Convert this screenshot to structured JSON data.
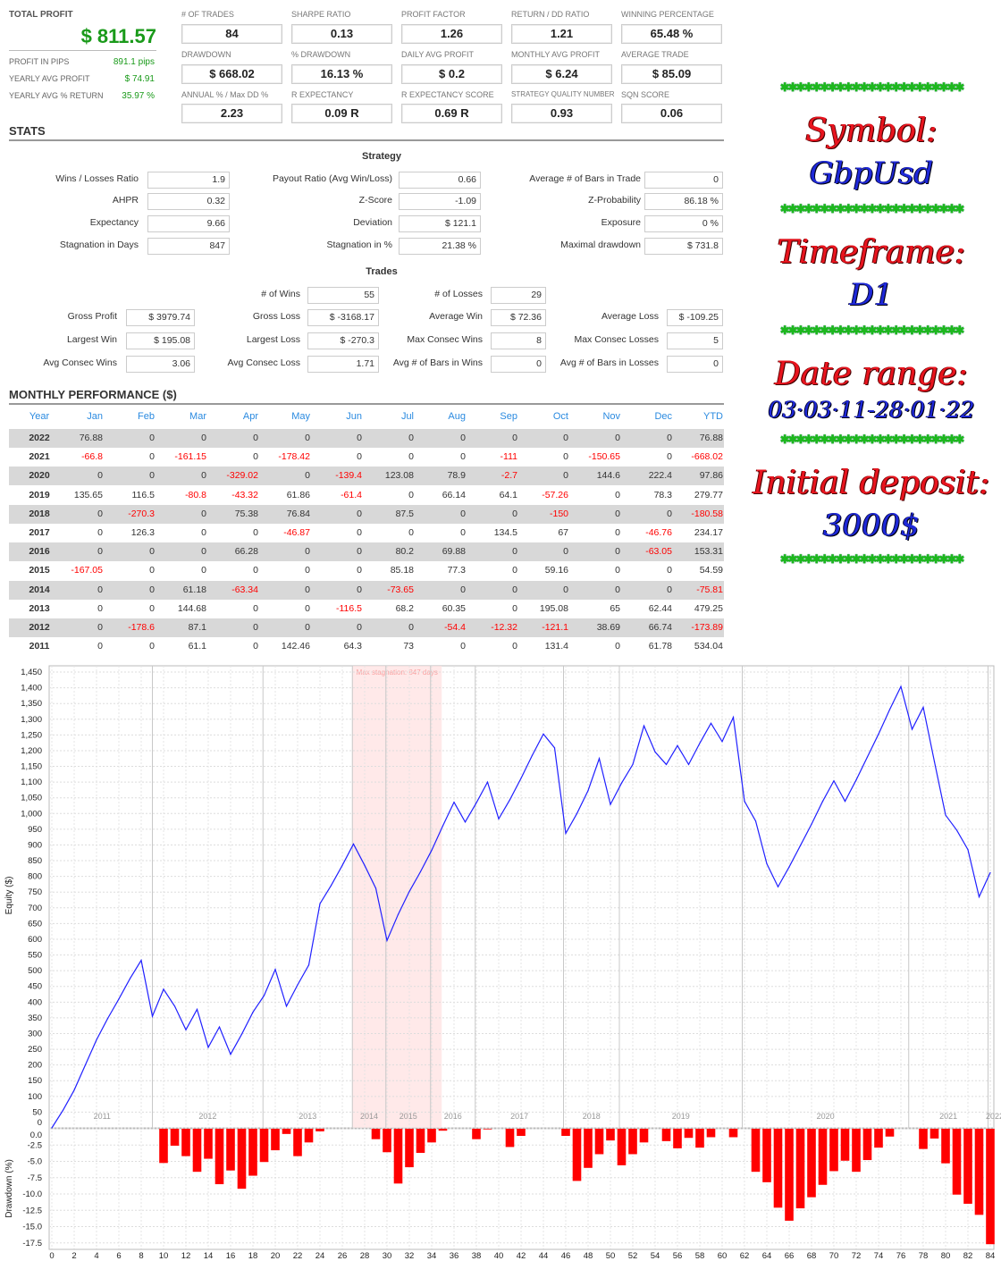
{
  "summary": {
    "total_profit_label": "TOTAL PROFIT",
    "total_profit_value": "$ 811.57",
    "rows": [
      {
        "label": "PROFIT IN PIPS",
        "value": "891.1 pips"
      },
      {
        "label": "YEARLY AVG PROFIT",
        "value": "$ 74.91"
      },
      {
        "label": "YEARLY AVG % RETURN",
        "value": "35.97 %"
      }
    ]
  },
  "cards": [
    {
      "label": "# OF TRADES",
      "value": "84"
    },
    {
      "label": "SHARPE RATIO",
      "value": "0.13"
    },
    {
      "label": "PROFIT FACTOR",
      "value": "1.26"
    },
    {
      "label": "RETURN / DD RATIO",
      "value": "1.21"
    },
    {
      "label": "WINNING PERCENTAGE",
      "value": "65.48 %"
    },
    {
      "label": "DRAWDOWN",
      "value": "$ 668.02"
    },
    {
      "label": "% DRAWDOWN",
      "value": "16.13 %"
    },
    {
      "label": "DAILY AVG PROFIT",
      "value": "$ 0.2"
    },
    {
      "label": "MONTHLY AVG PROFIT",
      "value": "$ 6.24"
    },
    {
      "label": "AVERAGE TRADE",
      "value": "$ 85.09"
    },
    {
      "label": "ANNUAL % / Max DD %",
      "value": "2.23"
    },
    {
      "label": "R EXPECTANCY",
      "value": "0.09 R"
    },
    {
      "label": "R EXPECTANCY SCORE",
      "value": "0.69 R"
    },
    {
      "label": "STRATEGY QUALITY NUMBER",
      "value": "0.93"
    },
    {
      "label": "SQN SCORE",
      "value": "0.06"
    }
  ],
  "stats_title": "STATS",
  "strategy": {
    "title": "Strategy",
    "columns": [
      [
        {
          "label": "Wins / Losses Ratio",
          "value": "1.9"
        },
        {
          "label": "AHPR",
          "value": "0.32"
        },
        {
          "label": "Expectancy",
          "value": "9.66"
        },
        {
          "label": "Stagnation in Days",
          "value": "847"
        }
      ],
      [
        {
          "label": "Payout Ratio (Avg Win/Loss)",
          "value": "0.66"
        },
        {
          "label": "Z-Score",
          "value": "-1.09"
        },
        {
          "label": "Deviation",
          "value": "$ 121.1"
        },
        {
          "label": "Stagnation in %",
          "value": "21.38 %"
        }
      ],
      [
        {
          "label": "Average # of Bars in Trade",
          "value": "0"
        },
        {
          "label": "Z-Probability",
          "value": "86.18 %"
        },
        {
          "label": "Exposure",
          "value": "0 %"
        },
        {
          "label": "Maximal drawdown",
          "value": "$ 731.8"
        }
      ]
    ]
  },
  "trades": {
    "title": "Trades",
    "rows": [
      [
        {
          "label": "# of Wins",
          "value": "55"
        },
        {
          "label": "# of Losses",
          "value": "29"
        }
      ],
      [
        {
          "label": "Gross Profit",
          "value": "$ 3979.74"
        },
        {
          "label": "Gross Loss",
          "value": "$ -3168.17"
        },
        {
          "label": "Average Win",
          "value": "$ 72.36"
        },
        {
          "label": "Average Loss",
          "value": "$ -109.25"
        }
      ],
      [
        {
          "label": "Largest Win",
          "value": "$ 195.08"
        },
        {
          "label": "Largest Loss",
          "value": "$ -270.3"
        },
        {
          "label": "Max Consec Wins",
          "value": "8"
        },
        {
          "label": "Max Consec Losses",
          "value": "5"
        }
      ],
      [
        {
          "label": "Avg Consec Wins",
          "value": "3.06"
        },
        {
          "label": "Avg Consec Loss",
          "value": "1.71"
        },
        {
          "label": "Avg # of Bars in Wins",
          "value": "0"
        },
        {
          "label": "Avg # of Bars in Losses",
          "value": "0"
        }
      ]
    ]
  },
  "monthly": {
    "title": "MONTHLY PERFORMANCE ($)",
    "columns": [
      "Year",
      "Jan",
      "Feb",
      "Mar",
      "Apr",
      "May",
      "Jun",
      "Jul",
      "Aug",
      "Sep",
      "Oct",
      "Nov",
      "Dec",
      "YTD"
    ],
    "rows": [
      [
        "2022",
        "76.88",
        "0",
        "0",
        "0",
        "0",
        "0",
        "0",
        "0",
        "0",
        "0",
        "0",
        "0",
        "76.88"
      ],
      [
        "2021",
        "-66.8",
        "0",
        "-161.15",
        "0",
        "-178.42",
        "0",
        "0",
        "0",
        "-111",
        "0",
        "-150.65",
        "0",
        "-668.02"
      ],
      [
        "2020",
        "0",
        "0",
        "0",
        "-329.02",
        "0",
        "-139.4",
        "123.08",
        "78.9",
        "-2.7",
        "0",
        "144.6",
        "222.4",
        "97.86"
      ],
      [
        "2019",
        "135.65",
        "116.5",
        "-80.8",
        "-43.32",
        "61.86",
        "-61.4",
        "0",
        "66.14",
        "64.1",
        "-57.26",
        "0",
        "78.3",
        "279.77"
      ],
      [
        "2018",
        "0",
        "-270.3",
        "0",
        "75.38",
        "76.84",
        "0",
        "87.5",
        "0",
        "0",
        "-150",
        "0",
        "0",
        "-180.58"
      ],
      [
        "2017",
        "0",
        "126.3",
        "0",
        "0",
        "-46.87",
        "0",
        "0",
        "0",
        "134.5",
        "67",
        "0",
        "-46.76",
        "234.17"
      ],
      [
        "2016",
        "0",
        "0",
        "0",
        "66.28",
        "0",
        "0",
        "80.2",
        "69.88",
        "0",
        "0",
        "0",
        "-63.05",
        "153.31"
      ],
      [
        "2015",
        "-167.05",
        "0",
        "0",
        "0",
        "0",
        "0",
        "85.18",
        "77.3",
        "0",
        "59.16",
        "0",
        "0",
        "54.59"
      ],
      [
        "2014",
        "0",
        "0",
        "61.18",
        "-63.34",
        "0",
        "0",
        "-73.65",
        "0",
        "0",
        "0",
        "0",
        "0",
        "-75.81"
      ],
      [
        "2013",
        "0",
        "0",
        "144.68",
        "0",
        "0",
        "-116.5",
        "68.2",
        "60.35",
        "0",
        "195.08",
        "65",
        "62.44",
        "479.25"
      ],
      [
        "2012",
        "0",
        "-178.6",
        "87.1",
        "0",
        "0",
        "0",
        "0",
        "-54.4",
        "-12.32",
        "-121.1",
        "38.69",
        "66.74",
        "-173.89"
      ],
      [
        "2011",
        "0",
        "0",
        "61.1",
        "0",
        "142.46",
        "64.3",
        "73",
        "0",
        "0",
        "131.4",
        "0",
        "61.78",
        "534.04"
      ]
    ],
    "positive_color": "#333333",
    "negative_color": "#ff0000"
  },
  "info_panel": {
    "stars": "✱✱✱✱✱✱✱✱✱✱✱✱✱✱✱✱✱✱✱✱✱✱✱",
    "symbol_label": "Symbol:",
    "symbol_value": "GbpUsd",
    "timeframe_label": "Timeframe:",
    "timeframe_value": "D1",
    "date_label": "Date range:",
    "date_value": "03·03·11-28·01·22",
    "deposit_label": "Initial deposit:",
    "deposit_value": "3000$"
  },
  "chart_data": [
    {
      "type": "line",
      "ylabel": "Equity ($)",
      "xlim": [
        0,
        84
      ],
      "ylim": [
        0,
        1450
      ],
      "y_ticks": [
        0,
        50,
        100,
        150,
        200,
        250,
        300,
        350,
        400,
        450,
        500,
        550,
        600,
        650,
        700,
        750,
        800,
        850,
        900,
        950,
        1000,
        1050,
        1100,
        1150,
        1200,
        1250,
        1300,
        1350,
        1400,
        1450
      ],
      "grid": true,
      "line_color": "#2020ff",
      "annotation": "Max stagnation: 847 days",
      "stagnation_range": [
        26.9,
        34.9
      ],
      "year_markers": [
        {
          "year": "2011",
          "start": 0,
          "end": 9
        },
        {
          "year": "2012",
          "start": 9,
          "end": 18.9
        },
        {
          "year": "2013",
          "start": 18.9,
          "end": 26.9
        },
        {
          "year": "2014",
          "start": 26.9,
          "end": 29.9
        },
        {
          "year": "2015",
          "start": 29.9,
          "end": 33.9
        },
        {
          "year": "2016",
          "start": 33.9,
          "end": 37.9
        },
        {
          "year": "2017",
          "start": 37.9,
          "end": 45.8
        },
        {
          "year": "2018",
          "start": 45.8,
          "end": 50.8
        },
        {
          "year": "2019",
          "start": 50.8,
          "end": 61.8
        },
        {
          "year": "2020",
          "start": 61.8,
          "end": 76.7
        },
        {
          "year": "2021",
          "start": 76.7,
          "end": 83.8
        },
        {
          "year": "2022",
          "start": 83.8,
          "end": 85
        }
      ],
      "y": [
        0,
        56,
        120,
        200,
        280,
        348,
        410,
        475,
        533,
        355,
        441,
        387,
        312,
        377,
        256,
        321,
        234,
        298,
        368,
        421,
        504,
        387,
        455,
        518,
        713,
        771,
        835,
        903,
        835,
        762,
        596,
        679,
        752,
        815,
        883,
        961,
        1036,
        973,
        1034,
        1100,
        983,
        1044,
        1112,
        1185,
        1253,
        1209,
        937,
        1000,
        1073,
        1175,
        1029,
        1097,
        1156,
        1279,
        1196,
        1156,
        1216,
        1156,
        1224,
        1287,
        1229,
        1306,
        1039,
        976,
        840,
        767,
        830,
        898,
        966,
        1039,
        1104,
        1039,
        1107,
        1180,
        1253,
        1331,
        1404,
        1268,
        1338,
        1165,
        995,
        947,
        885,
        735,
        812
      ]
    },
    {
      "type": "bar",
      "ylabel": "Drawdown (%)",
      "xlim": [
        0,
        84
      ],
      "ylim": [
        -17.5,
        0
      ],
      "x_ticks": [
        0,
        2,
        4,
        6,
        8,
        10,
        12,
        14,
        16,
        18,
        20,
        22,
        24,
        26,
        28,
        30,
        32,
        34,
        36,
        38,
        40,
        42,
        44,
        46,
        48,
        50,
        52,
        54,
        56,
        58,
        60,
        62,
        64,
        66,
        68,
        70,
        72,
        74,
        76,
        78,
        80,
        82,
        84
      ],
      "y_ticks": [
        "0.0",
        "-2.5",
        "-5.0",
        "-7.5",
        "-10.0",
        "-12.5",
        "-15.0",
        "-17.5"
      ],
      "grid": true,
      "bar_color": "#ff0000",
      "values": [
        0,
        0,
        0,
        0,
        0,
        0,
        0,
        0,
        0,
        0,
        -5.25,
        -2.6,
        -4.2,
        -6.6,
        -4.6,
        -8.5,
        -6.4,
        -9.2,
        -7.2,
        -5.1,
        -3.3,
        -0.8,
        -4.2,
        -2.1,
        -0.4,
        0,
        0,
        0,
        0,
        -1.6,
        -3.6,
        -8.4,
        -5.9,
        -3.7,
        -2.1,
        -0.3,
        0,
        0,
        -1.6,
        -0.1,
        0,
        -2.8,
        -1.1,
        0,
        0,
        0,
        -1.1,
        -8.0,
        -6.0,
        -3.9,
        -1.8,
        -5.6,
        -3.9,
        -2.1,
        0,
        -1.9,
        -3.0,
        -1.4,
        -2.9,
        -1.3,
        0,
        -1.3,
        0,
        -6.6,
        -8.2,
        -12.1,
        -14.1,
        -12.2,
        -10.5,
        -8.6,
        -6.5,
        -4.9,
        -6.6,
        -4.8,
        -2.9,
        -1.2,
        0,
        0,
        -3.1,
        -1.5,
        -5.3,
        -10.1,
        -11.5,
        -13.2,
        -17.7
      ]
    }
  ]
}
